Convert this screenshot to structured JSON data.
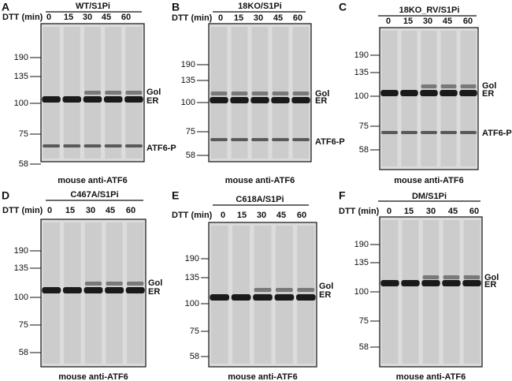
{
  "panels": [
    {
      "letter": "A",
      "title": "WT/S1Pi",
      "dtt_label": "DTT (min)",
      "times": [
        "0",
        "15",
        "30",
        "45",
        "60"
      ],
      "markers": [
        "190",
        "135",
        "100",
        "75",
        "58"
      ],
      "band_labels": [
        "Gol",
        "ER",
        "ATF6-P"
      ],
      "caption": "mouse anti-ATF6"
    },
    {
      "letter": "B",
      "title": "18KO/S1Pi",
      "dtt_label": "DTT (min)",
      "times": [
        "0",
        "15",
        "30",
        "45",
        "60"
      ],
      "markers": [
        "190",
        "135",
        "100",
        "75",
        "58"
      ],
      "band_labels": [
        "Gol",
        "ER",
        "ATF6-P"
      ],
      "caption": "mouse anti-ATF6"
    },
    {
      "letter": "C",
      "title": "18KO_RV/S1Pi",
      "times": [
        "0",
        "15",
        "30",
        "45",
        "60"
      ],
      "markers": [
        "190",
        "135",
        "100",
        "75",
        "58"
      ],
      "band_labels": [
        "Gol",
        "ER",
        "ATF6-P"
      ],
      "caption": "mouse anti-ATF6"
    },
    {
      "letter": "D",
      "title": "C467A/S1Pi",
      "dtt_label": "DTT (min)",
      "times": [
        "0",
        "15",
        "30",
        "45",
        "60"
      ],
      "markers": [
        "190",
        "135",
        "100",
        "75",
        "58"
      ],
      "band_labels": [
        "Gol",
        "ER"
      ],
      "caption": "mouse anti-ATF6"
    },
    {
      "letter": "E",
      "title": "C618A/S1Pi",
      "dtt_label": "DTT (min)",
      "times": [
        "0",
        "15",
        "30",
        "45",
        "60"
      ],
      "markers": [
        "190",
        "135",
        "100",
        "75",
        "58"
      ],
      "band_labels": [
        "Gol",
        "ER"
      ],
      "caption": "mouse anti-ATF6"
    },
    {
      "letter": "F",
      "title": "DM/S1Pi",
      "dtt_label": "DTT (min)",
      "times": [
        "0",
        "15",
        "30",
        "45",
        "60"
      ],
      "markers": [
        "190",
        "135",
        "100",
        "75",
        "58"
      ],
      "band_labels": [
        "Gol",
        "ER"
      ],
      "caption": "mouse anti-ATF6"
    }
  ]
}
